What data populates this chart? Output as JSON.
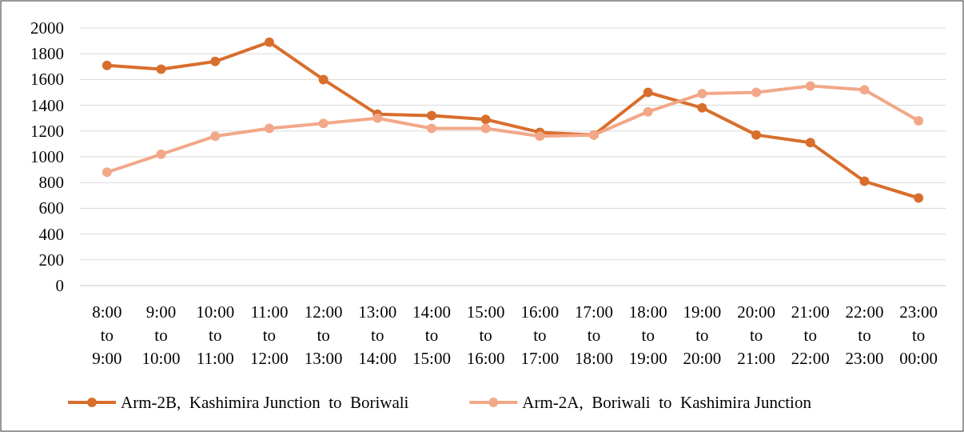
{
  "chart_data": {
    "type": "line",
    "categories": [
      "8:00 to 9:00",
      "9:00 to 10:00",
      "10:00 to 11:00",
      "11:00 to 12:00",
      "12:00 to 13:00",
      "13:00 to 14:00",
      "14:00 to 15:00",
      "15:00 to 16:00",
      "16:00 to 17:00",
      "17:00 to 18:00",
      "18:00 to 19:00",
      "19:00 to 20:00",
      "20:00 to 21:00",
      "21:00 to 22:00",
      "22:00 to 23:00",
      "23:00 to 00:00"
    ],
    "series": [
      {
        "name": "Arm-2B,  Kashimira Junction  to  Boriwali",
        "color": "#d86e2c",
        "values": [
          1710,
          1680,
          1740,
          1890,
          1600,
          1330,
          1320,
          1290,
          1190,
          1170,
          1500,
          1380,
          1170,
          1110,
          810,
          680
        ]
      },
      {
        "name": "Arm-2A,  Boriwali  to  Kashimira Junction",
        "color": "#f2a888",
        "values": [
          880,
          1020,
          1160,
          1220,
          1260,
          1300,
          1220,
          1220,
          1160,
          1170,
          1350,
          1490,
          1500,
          1550,
          1520,
          1280
        ]
      }
    ],
    "ylim": [
      0,
      2000
    ],
    "yticks": [
      0,
      200,
      400,
      600,
      800,
      1000,
      1200,
      1400,
      1600,
      1800,
      2000
    ],
    "grid": "y",
    "legend": "bottom",
    "marker": "circle",
    "line_style": "solid"
  }
}
